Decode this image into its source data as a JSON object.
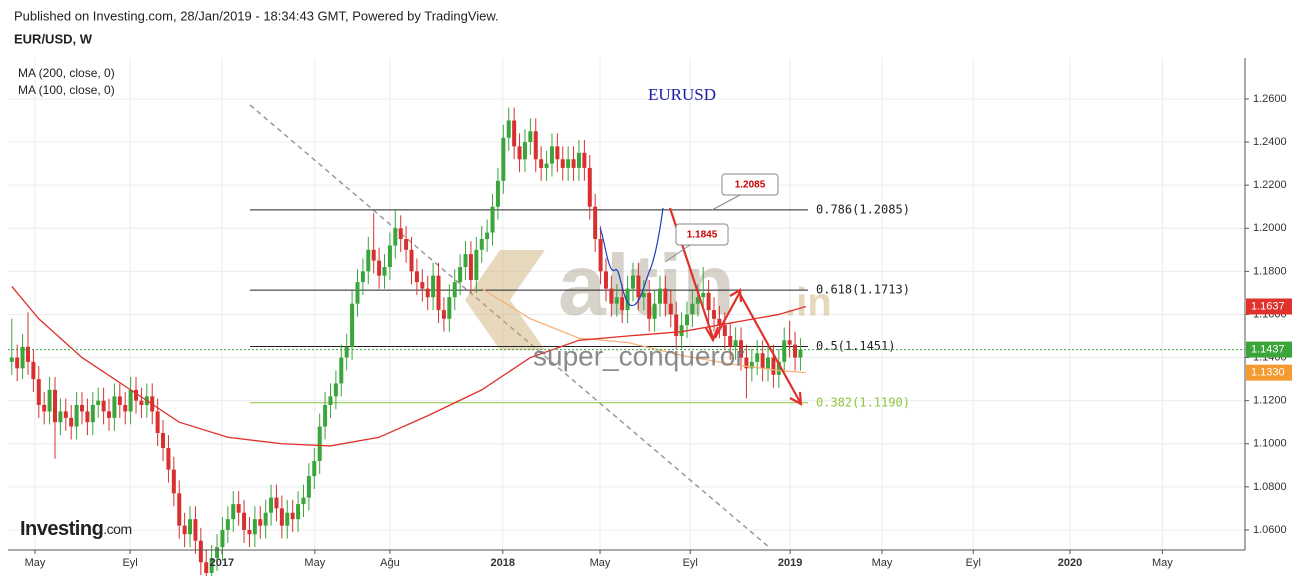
{
  "header": {
    "published": "Published on Investing.com, 28/Jan/2019 - 18:34:43 GMT, Powered by TradingView.",
    "symbol": "EUR/USD, W"
  },
  "watermark": {
    "brand": "altin",
    "suffix": ".in",
    "user": "super_conqueror",
    "logo": "Investing",
    "logo_suffix": ".com"
  },
  "chart_data": {
    "type": "candlestick",
    "title": "EURUSD",
    "title_color": "#1a1aa6",
    "up_color": "#3aa53a",
    "down_color": "#d8302f",
    "xlim": [
      -0.7,
      228.3
    ],
    "xticks": [
      {
        "value": 4.3,
        "label": "May"
      },
      {
        "value": 21.9,
        "label": "Eyl"
      },
      {
        "value": 38.9,
        "label": "2017"
      },
      {
        "value": 56.1,
        "label": "May"
      },
      {
        "value": 70,
        "label": "Ağu"
      },
      {
        "value": 90.9,
        "label": "2018"
      },
      {
        "value": 108.9,
        "label": "May"
      },
      {
        "value": 125.6,
        "label": "Eyl"
      },
      {
        "value": 144.1,
        "label": "2019"
      },
      {
        "value": 161.1,
        "label": "May"
      },
      {
        "value": 178,
        "label": "Eyl"
      },
      {
        "value": 195.9,
        "label": "2020"
      },
      {
        "value": 213,
        "label": "May"
      }
    ],
    "ylim": [
      1.0507,
      1.279
    ],
    "yticks": [
      {
        "value": 1.06,
        "label": "1.0600"
      },
      {
        "value": 1.08,
        "label": "1.0800"
      },
      {
        "value": 1.1,
        "label": "1.1000"
      },
      {
        "value": 1.12,
        "label": "1.1200"
      },
      {
        "value": 1.14,
        "label": "1.1400"
      },
      {
        "value": 1.16,
        "label": "1.1600"
      },
      {
        "value": 1.18,
        "label": "1.1800"
      },
      {
        "value": 1.2,
        "label": "1.2000"
      },
      {
        "value": 1.22,
        "label": "1.2200"
      },
      {
        "value": 1.24,
        "label": "1.2400"
      },
      {
        "value": 1.26,
        "label": "1.2600"
      }
    ],
    "grid": true,
    "ohlc": [
      [
        1.138,
        1.158,
        1.132,
        1.14
      ],
      [
        1.14,
        1.146,
        1.129,
        1.135
      ],
      [
        1.135,
        1.151,
        1.13,
        1.145
      ],
      [
        1.145,
        1.161,
        1.132,
        1.138
      ],
      [
        1.138,
        1.144,
        1.124,
        1.13
      ],
      [
        1.13,
        1.136,
        1.112,
        1.118
      ],
      [
        1.118,
        1.124,
        1.109,
        1.115
      ],
      [
        1.115,
        1.131,
        1.109,
        1.125
      ],
      [
        1.125,
        1.131,
        1.093,
        1.11
      ],
      [
        1.11,
        1.121,
        1.104,
        1.115
      ],
      [
        1.115,
        1.121,
        1.106,
        1.112
      ],
      [
        1.112,
        1.118,
        1.102,
        1.108
      ],
      [
        1.108,
        1.124,
        1.102,
        1.118
      ],
      [
        1.118,
        1.124,
        1.109,
        1.115
      ],
      [
        1.115,
        1.121,
        1.104,
        1.11
      ],
      [
        1.11,
        1.124,
        1.104,
        1.118
      ],
      [
        1.118,
        1.126,
        1.112,
        1.12
      ],
      [
        1.12,
        1.126,
        1.109,
        1.115
      ],
      [
        1.115,
        1.121,
        1.106,
        1.112
      ],
      [
        1.112,
        1.128,
        1.106,
        1.122
      ],
      [
        1.122,
        1.128,
        1.112,
        1.118
      ],
      [
        1.118,
        1.124,
        1.109,
        1.115
      ],
      [
        1.115,
        1.131,
        1.109,
        1.125
      ],
      [
        1.125,
        1.131,
        1.114,
        1.12
      ],
      [
        1.12,
        1.126,
        1.112,
        1.118
      ],
      [
        1.118,
        1.128,
        1.112,
        1.122
      ],
      [
        1.122,
        1.128,
        1.109,
        1.115
      ],
      [
        1.115,
        1.121,
        1.099,
        1.105
      ],
      [
        1.105,
        1.111,
        1.092,
        1.098
      ],
      [
        1.098,
        1.104,
        1.082,
        1.088
      ],
      [
        1.088,
        1.094,
        1.071,
        1.077
      ],
      [
        1.077,
        1.083,
        1.056,
        1.062
      ],
      [
        1.062,
        1.068,
        1.052,
        1.058
      ],
      [
        1.058,
        1.071,
        1.052,
        1.065
      ],
      [
        1.065,
        1.071,
        1.049,
        1.055
      ],
      [
        1.055,
        1.061,
        1.039,
        1.045
      ],
      [
        1.045,
        1.051,
        1.034,
        1.04
      ],
      [
        1.04,
        1.053,
        1.034,
        1.047
      ],
      [
        1.047,
        1.058,
        1.041,
        1.052
      ],
      [
        1.052,
        1.066,
        1.046,
        1.06
      ],
      [
        1.06,
        1.071,
        1.054,
        1.065
      ],
      [
        1.065,
        1.078,
        1.059,
        1.072
      ],
      [
        1.072,
        1.078,
        1.062,
        1.068
      ],
      [
        1.068,
        1.074,
        1.054,
        1.06
      ],
      [
        1.06,
        1.066,
        1.052,
        1.058
      ],
      [
        1.058,
        1.071,
        1.052,
        1.065
      ],
      [
        1.065,
        1.071,
        1.056,
        1.062
      ],
      [
        1.062,
        1.074,
        1.056,
        1.068
      ],
      [
        1.068,
        1.081,
        1.062,
        1.075
      ],
      [
        1.075,
        1.081,
        1.064,
        1.07
      ],
      [
        1.07,
        1.076,
        1.056,
        1.062
      ],
      [
        1.062,
        1.074,
        1.056,
        1.068
      ],
      [
        1.068,
        1.074,
        1.059,
        1.065
      ],
      [
        1.065,
        1.078,
        1.059,
        1.072
      ],
      [
        1.072,
        1.081,
        1.066,
        1.075
      ],
      [
        1.075,
        1.091,
        1.069,
        1.085
      ],
      [
        1.085,
        1.098,
        1.079,
        1.092
      ],
      [
        1.092,
        1.114,
        1.086,
        1.108
      ],
      [
        1.108,
        1.124,
        1.102,
        1.118
      ],
      [
        1.118,
        1.128,
        1.112,
        1.122
      ],
      [
        1.122,
        1.134,
        1.116,
        1.128
      ],
      [
        1.128,
        1.146,
        1.122,
        1.14
      ],
      [
        1.14,
        1.151,
        1.134,
        1.145
      ],
      [
        1.145,
        1.171,
        1.139,
        1.165
      ],
      [
        1.165,
        1.181,
        1.159,
        1.175
      ],
      [
        1.175,
        1.186,
        1.169,
        1.18
      ],
      [
        1.18,
        1.196,
        1.174,
        1.19
      ],
      [
        1.19,
        1.207,
        1.179,
        1.185
      ],
      [
        1.185,
        1.191,
        1.172,
        1.178
      ],
      [
        1.178,
        1.188,
        1.172,
        1.182
      ],
      [
        1.182,
        1.198,
        1.176,
        1.192
      ],
      [
        1.192,
        1.209,
        1.186,
        1.2
      ],
      [
        1.2,
        1.206,
        1.189,
        1.195
      ],
      [
        1.195,
        1.201,
        1.184,
        1.19
      ],
      [
        1.19,
        1.196,
        1.174,
        1.18
      ],
      [
        1.18,
        1.186,
        1.169,
        1.175
      ],
      [
        1.175,
        1.181,
        1.166,
        1.172
      ],
      [
        1.172,
        1.178,
        1.162,
        1.168
      ],
      [
        1.168,
        1.184,
        1.162,
        1.178
      ],
      [
        1.178,
        1.184,
        1.156,
        1.162
      ],
      [
        1.162,
        1.168,
        1.152,
        1.158
      ],
      [
        1.158,
        1.174,
        1.152,
        1.168
      ],
      [
        1.168,
        1.181,
        1.162,
        1.175
      ],
      [
        1.175,
        1.188,
        1.169,
        1.182
      ],
      [
        1.182,
        1.194,
        1.176,
        1.188
      ],
      [
        1.188,
        1.194,
        1.17,
        1.176
      ],
      [
        1.176,
        1.196,
        1.17,
        1.19
      ],
      [
        1.19,
        1.201,
        1.184,
        1.195
      ],
      [
        1.195,
        1.204,
        1.189,
        1.198
      ],
      [
        1.198,
        1.216,
        1.192,
        1.21
      ],
      [
        1.21,
        1.228,
        1.204,
        1.222
      ],
      [
        1.222,
        1.248,
        1.216,
        1.242
      ],
      [
        1.242,
        1.256,
        1.236,
        1.25
      ],
      [
        1.25,
        1.256,
        1.232,
        1.238
      ],
      [
        1.238,
        1.244,
        1.226,
        1.232
      ],
      [
        1.232,
        1.246,
        1.226,
        1.24
      ],
      [
        1.24,
        1.251,
        1.234,
        1.245
      ],
      [
        1.245,
        1.251,
        1.226,
        1.232
      ],
      [
        1.232,
        1.238,
        1.222,
        1.228
      ],
      [
        1.228,
        1.236,
        1.222,
        1.23
      ],
      [
        1.23,
        1.244,
        1.224,
        1.238
      ],
      [
        1.238,
        1.244,
        1.226,
        1.232
      ],
      [
        1.232,
        1.238,
        1.222,
        1.228
      ],
      [
        1.228,
        1.238,
        1.222,
        1.232
      ],
      [
        1.232,
        1.238,
        1.222,
        1.228
      ],
      [
        1.228,
        1.241,
        1.222,
        1.235
      ],
      [
        1.235,
        1.241,
        1.222,
        1.228
      ],
      [
        1.228,
        1.234,
        1.204,
        1.21
      ],
      [
        1.21,
        1.216,
        1.189,
        1.195
      ],
      [
        1.195,
        1.201,
        1.174,
        1.18
      ],
      [
        1.18,
        1.186,
        1.166,
        1.172
      ],
      [
        1.172,
        1.178,
        1.159,
        1.165
      ],
      [
        1.165,
        1.174,
        1.159,
        1.168
      ],
      [
        1.168,
        1.174,
        1.156,
        1.162
      ],
      [
        1.162,
        1.178,
        1.156,
        1.172
      ],
      [
        1.172,
        1.184,
        1.166,
        1.178
      ],
      [
        1.178,
        1.184,
        1.162,
        1.168
      ],
      [
        1.168,
        1.176,
        1.162,
        1.17
      ],
      [
        1.17,
        1.176,
        1.152,
        1.158
      ],
      [
        1.158,
        1.171,
        1.152,
        1.165
      ],
      [
        1.165,
        1.178,
        1.159,
        1.172
      ],
      [
        1.172,
        1.178,
        1.159,
        1.165
      ],
      [
        1.165,
        1.171,
        1.154,
        1.16
      ],
      [
        1.16,
        1.166,
        1.144,
        1.15
      ],
      [
        1.15,
        1.161,
        1.144,
        1.155
      ],
      [
        1.155,
        1.166,
        1.149,
        1.16
      ],
      [
        1.16,
        1.171,
        1.154,
        1.165
      ],
      [
        1.165,
        1.174,
        1.159,
        1.168
      ],
      [
        1.168,
        1.182,
        1.162,
        1.17
      ],
      [
        1.17,
        1.176,
        1.156,
        1.162
      ],
      [
        1.162,
        1.168,
        1.152,
        1.158
      ],
      [
        1.158,
        1.164,
        1.149,
        1.155
      ],
      [
        1.155,
        1.161,
        1.144,
        1.15
      ],
      [
        1.15,
        1.156,
        1.139,
        1.145
      ],
      [
        1.145,
        1.154,
        1.139,
        1.148
      ],
      [
        1.148,
        1.154,
        1.134,
        1.14
      ],
      [
        1.14,
        1.146,
        1.121,
        1.135
      ],
      [
        1.135,
        1.144,
        1.129,
        1.138
      ],
      [
        1.138,
        1.148,
        1.132,
        1.142
      ],
      [
        1.142,
        1.148,
        1.129,
        1.135
      ],
      [
        1.135,
        1.146,
        1.129,
        1.14
      ],
      [
        1.14,
        1.146,
        1.126,
        1.132
      ],
      [
        1.132,
        1.144,
        1.126,
        1.138
      ],
      [
        1.138,
        1.154,
        1.132,
        1.148
      ],
      [
        1.148,
        1.157,
        1.14,
        1.146
      ],
      [
        1.146,
        1.152,
        1.134,
        1.14
      ],
      [
        1.14,
        1.149,
        1.134,
        1.1437
      ]
    ],
    "ma_lines": [
      {
        "name": "MA (200, close, 0)",
        "color": "#f5b27a",
        "x": [
          87,
          96,
          105,
          114,
          124,
          133,
          142,
          147
        ],
        "values": [
          1.172,
          1.158,
          1.149,
          1.147,
          1.141,
          1.137,
          1.134,
          1.133
        ]
      },
      {
        "name": "MA (100, close, 0)",
        "color": "#e0312b",
        "x": [
          0,
          5,
          13,
          22,
          31,
          40,
          50,
          59,
          68,
          77,
          87,
          96,
          105,
          114,
          124,
          133,
          142,
          147
        ],
        "values": [
          1.173,
          1.158,
          1.14,
          1.125,
          1.11,
          1.103,
          1.1,
          1.099,
          1.103,
          1.113,
          1.125,
          1.14,
          1.148,
          1.15,
          1.152,
          1.156,
          1.16,
          1.1637
        ]
      }
    ],
    "fib": [
      {
        "label": "0.786(1.2085)",
        "value": 1.2085,
        "color": "#222222"
      },
      {
        "label": "0.618(1.1713)",
        "value": 1.1713,
        "color": "#222222"
      },
      {
        "label": "0.5(1.1451)",
        "value": 1.1451,
        "color": "#222222"
      },
      {
        "label": "0.382(1.1190)",
        "value": 1.119,
        "color": "#8cc63f"
      }
    ],
    "price_tags": [
      {
        "value": 1.1637,
        "label": "1.1637",
        "color": "#e0312b"
      },
      {
        "value": 1.1437,
        "label": "1.1437",
        "color": "#3aa53a"
      },
      {
        "value": 1.133,
        "label": "1.1330",
        "color": "#f59a30"
      }
    ],
    "callouts": [
      "1.2085",
      "1.1845"
    ]
  }
}
